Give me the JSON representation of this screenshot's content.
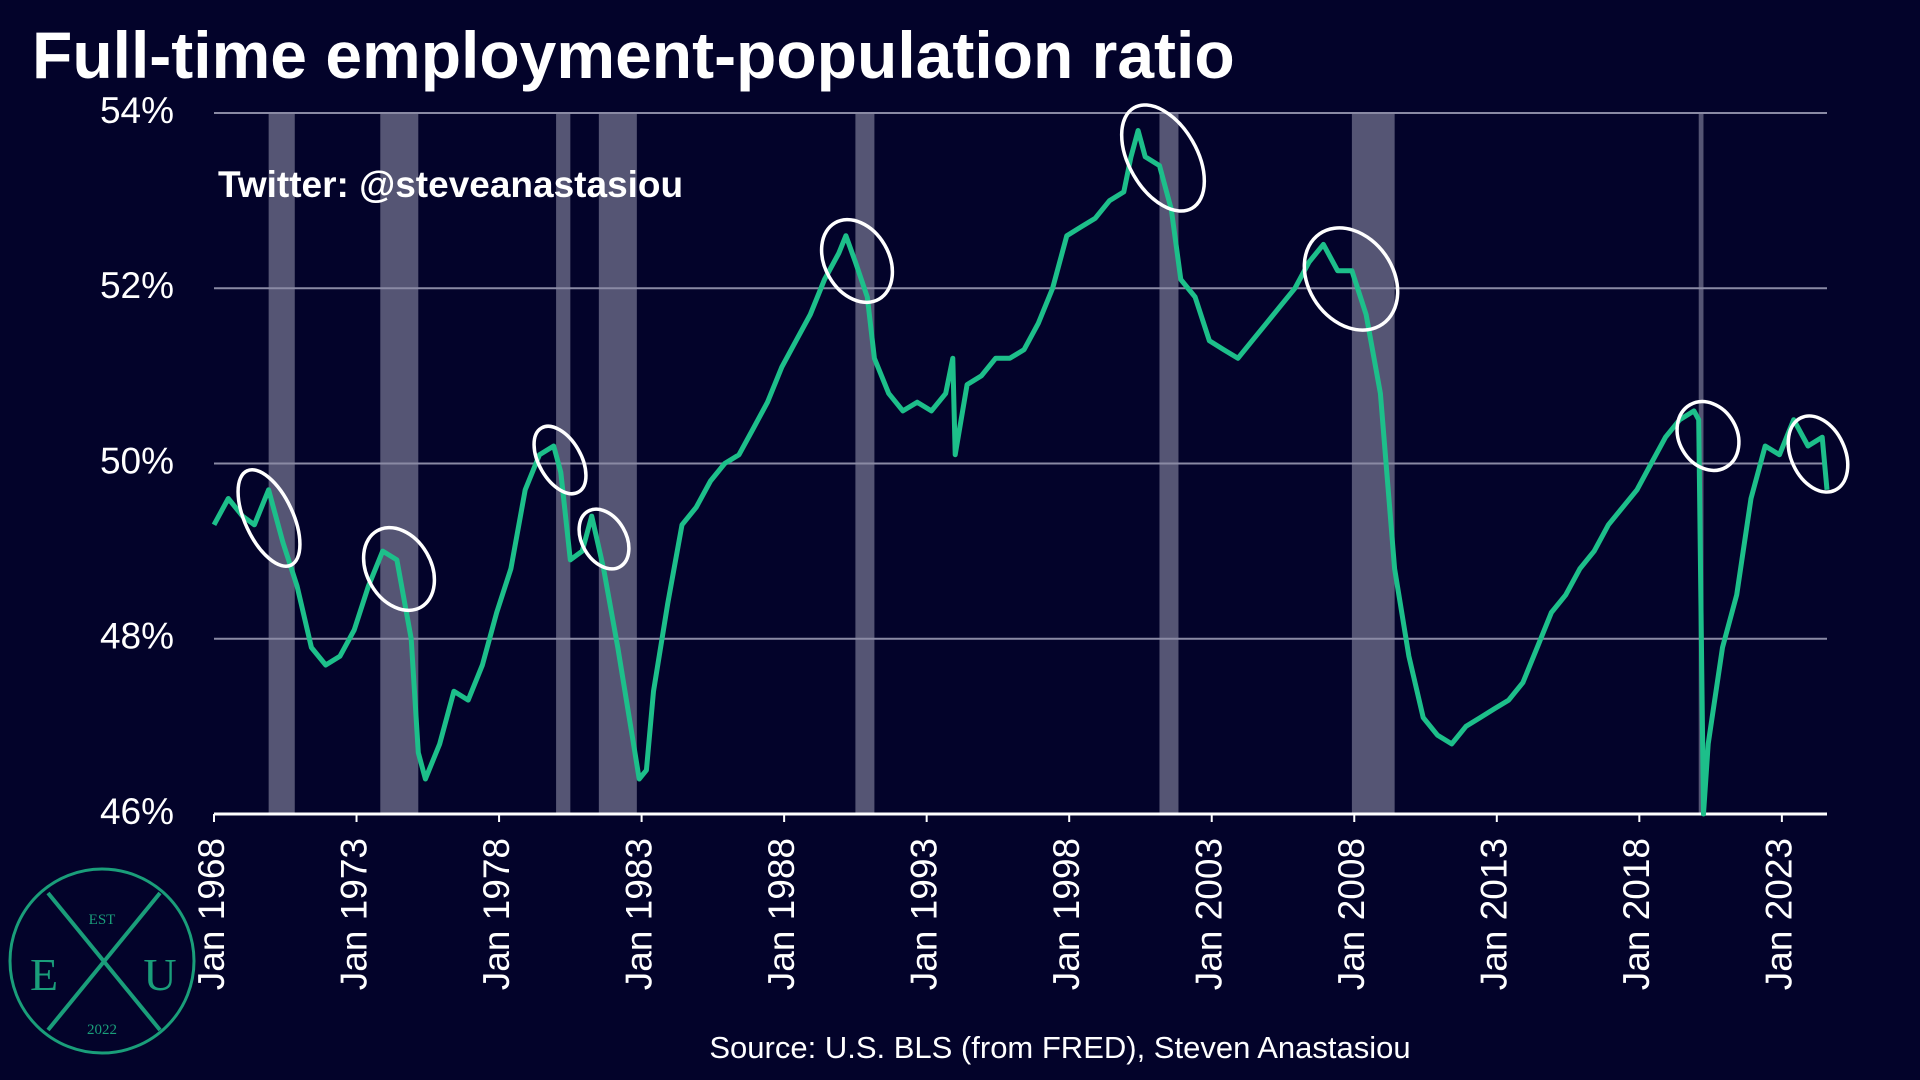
{
  "chart_data": {
    "type": "line",
    "title": "Full-time employment-population ratio",
    "annotation": "Twitter: @steveanastasiou",
    "source": "Source: U.S. BLS (from FRED), Steven Anastasiou",
    "logo": {
      "top": "EST",
      "left": "E",
      "right": "U",
      "bottom": "2022"
    },
    "xlim": [
      "1968-01",
      "2024-08"
    ],
    "ylim": [
      46,
      54
    ],
    "yticks": [
      {
        "value": 46,
        "label": "46%"
      },
      {
        "value": 48,
        "label": "48%"
      },
      {
        "value": 50,
        "label": "50%"
      },
      {
        "value": 52,
        "label": "52%"
      },
      {
        "value": 54,
        "label": "54%"
      }
    ],
    "xticks": [
      {
        "value": "1968-01",
        "label": "Jan 1968"
      },
      {
        "value": "1973-01",
        "label": "Jan 1973"
      },
      {
        "value": "1978-01",
        "label": "Jan 1978"
      },
      {
        "value": "1983-01",
        "label": "Jan 1983"
      },
      {
        "value": "1988-01",
        "label": "Jan 1988"
      },
      {
        "value": "1993-01",
        "label": "Jan 1993"
      },
      {
        "value": "1998-01",
        "label": "Jan 1998"
      },
      {
        "value": "2003-01",
        "label": "Jan 2003"
      },
      {
        "value": "2008-01",
        "label": "Jan 2008"
      },
      {
        "value": "2013-01",
        "label": "Jan 2013"
      },
      {
        "value": "2018-01",
        "label": "Jan 2018"
      },
      {
        "value": "2023-01",
        "label": "Jan 2023"
      }
    ],
    "grid": true,
    "recession_color": "#5e5e7c",
    "recessions": [
      {
        "start": "1969-12",
        "end": "1970-11"
      },
      {
        "start": "1973-11",
        "end": "1975-03"
      },
      {
        "start": "1980-01",
        "end": "1980-07"
      },
      {
        "start": "1981-07",
        "end": "1982-11"
      },
      {
        "start": "1990-07",
        "end": "1991-03"
      },
      {
        "start": "2001-03",
        "end": "2001-11"
      },
      {
        "start": "2007-12",
        "end": "2009-06"
      },
      {
        "start": "2020-02",
        "end": "2020-04"
      }
    ],
    "series": [
      {
        "color": "#1dbf8a",
        "x": [
          "1968-01",
          "1968-07",
          "1969-01",
          "1969-06",
          "1969-12",
          "1970-06",
          "1970-12",
          "1971-06",
          "1971-12",
          "1972-06",
          "1972-12",
          "1973-06",
          "1973-12",
          "1974-06",
          "1974-12",
          "1975-03",
          "1975-06",
          "1975-12",
          "1976-06",
          "1976-12",
          "1977-06",
          "1977-12",
          "1978-06",
          "1978-12",
          "1979-06",
          "1979-12",
          "1980-03",
          "1980-07",
          "1980-12",
          "1981-04",
          "1981-09",
          "1982-03",
          "1982-09",
          "1982-12",
          "1983-03",
          "1983-06",
          "1983-12",
          "1984-06",
          "1984-12",
          "1985-06",
          "1985-12",
          "1986-06",
          "1986-12",
          "1987-06",
          "1987-12",
          "1988-06",
          "1988-12",
          "1989-06",
          "1989-12",
          "1990-03",
          "1990-07",
          "1990-12",
          "1991-03",
          "1991-09",
          "1992-03",
          "1992-09",
          "1993-03",
          "1993-09",
          "1993-12",
          "1994-01",
          "1994-06",
          "1994-12",
          "1995-06",
          "1995-12",
          "1996-06",
          "1996-12",
          "1997-06",
          "1997-12",
          "1998-06",
          "1998-12",
          "1999-06",
          "1999-12",
          "2000-03",
          "2000-06",
          "2000-09",
          "2001-03",
          "2001-08",
          "2001-12",
          "2002-06",
          "2002-12",
          "2003-06",
          "2003-12",
          "2004-06",
          "2004-12",
          "2005-06",
          "2005-12",
          "2006-06",
          "2006-12",
          "2007-06",
          "2007-12",
          "2008-06",
          "2008-12",
          "2009-03",
          "2009-06",
          "2009-12",
          "2010-06",
          "2010-12",
          "2011-06",
          "2011-12",
          "2012-06",
          "2012-12",
          "2013-06",
          "2013-12",
          "2014-06",
          "2014-12",
          "2015-06",
          "2015-12",
          "2016-06",
          "2016-12",
          "2017-06",
          "2017-12",
          "2018-06",
          "2018-12",
          "2019-06",
          "2019-12",
          "2020-02",
          "2020-04",
          "2020-06",
          "2020-12",
          "2021-06",
          "2021-12",
          "2022-06",
          "2022-12",
          "2023-06",
          "2023-12",
          "2024-06",
          "2024-08"
        ],
        "values": [
          49.3,
          49.6,
          49.4,
          49.3,
          49.7,
          49.1,
          48.6,
          47.9,
          47.7,
          47.8,
          48.1,
          48.6,
          49.0,
          48.9,
          48.0,
          46.7,
          46.4,
          46.8,
          47.4,
          47.3,
          47.7,
          48.3,
          48.8,
          49.7,
          50.1,
          50.2,
          49.9,
          48.9,
          49.0,
          49.4,
          48.8,
          47.9,
          46.9,
          46.4,
          46.5,
          47.4,
          48.4,
          49.3,
          49.5,
          49.8,
          50.0,
          50.1,
          50.4,
          50.7,
          51.1,
          51.4,
          51.7,
          52.1,
          52.4,
          52.6,
          52.3,
          51.9,
          51.2,
          50.8,
          50.6,
          50.7,
          50.6,
          50.8,
          51.2,
          50.1,
          50.9,
          51.0,
          51.2,
          51.2,
          51.3,
          51.6,
          52.0,
          52.6,
          52.7,
          52.8,
          53.0,
          53.1,
          53.5,
          53.8,
          53.5,
          53.4,
          52.9,
          52.1,
          51.9,
          51.4,
          51.3,
          51.2,
          51.4,
          51.6,
          51.8,
          52.0,
          52.3,
          52.5,
          52.2,
          52.2,
          51.7,
          50.8,
          49.8,
          48.8,
          47.8,
          47.1,
          46.9,
          46.8,
          47.0,
          47.1,
          47.2,
          47.3,
          47.5,
          47.9,
          48.3,
          48.5,
          48.8,
          49.0,
          49.3,
          49.5,
          49.7,
          50.0,
          50.3,
          50.5,
          50.6,
          50.5,
          46.0,
          46.8,
          47.9,
          48.5,
          49.6,
          50.2,
          50.1,
          50.5,
          50.2,
          50.3,
          49.7
        ]
      }
    ]
  }
}
